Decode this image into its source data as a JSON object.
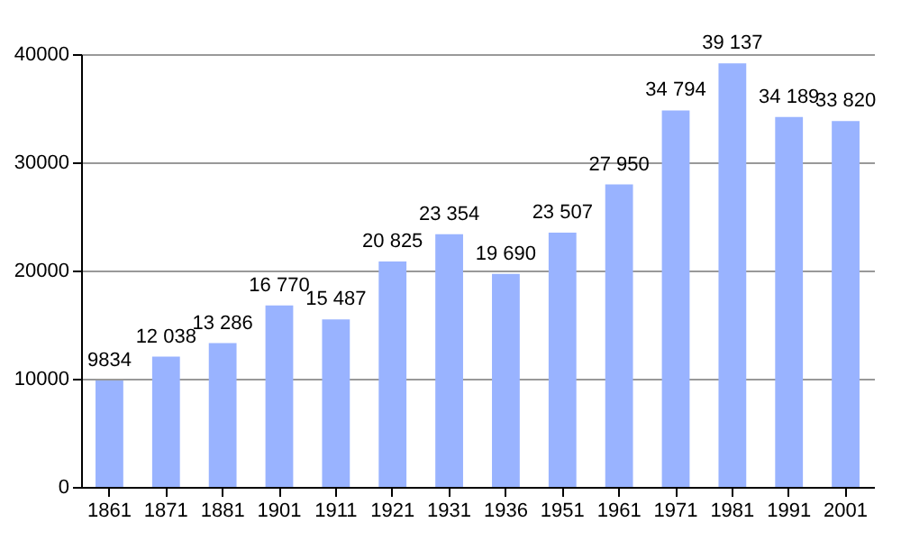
{
  "chart_data": {
    "type": "bar",
    "categories": [
      "1861",
      "1871",
      "1881",
      "1901",
      "1911",
      "1921",
      "1931",
      "1936",
      "1951",
      "1961",
      "1971",
      "1981",
      "1991",
      "2001"
    ],
    "values": [
      9834,
      12038,
      13286,
      16770,
      15487,
      20825,
      23354,
      19690,
      23507,
      27950,
      34794,
      39137,
      34189,
      33820
    ],
    "value_labels": [
      "9834",
      "12 038",
      "13 286",
      "16 770",
      "15 487",
      "20 825",
      "23 354",
      "19 690",
      "23 507",
      "27 950",
      "34 794",
      "39 137",
      "34 189",
      "33 820"
    ],
    "color": "#99b3ff",
    "ylim": [
      0,
      40000
    ],
    "yticks": [
      0,
      10000,
      20000,
      30000,
      40000
    ],
    "grid": "y"
  }
}
